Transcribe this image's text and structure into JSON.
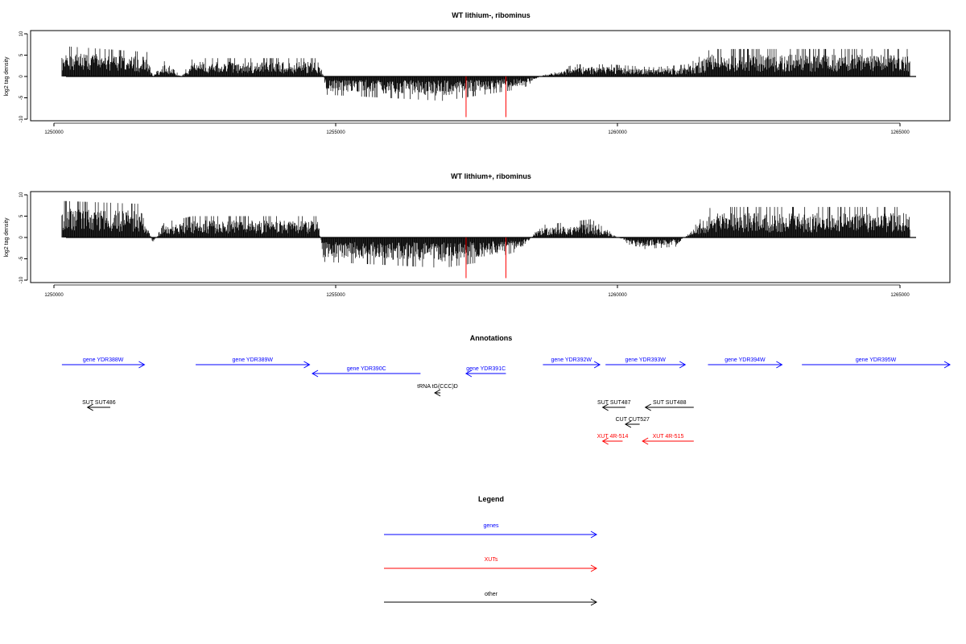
{
  "colors": {
    "genes": "#0000ff",
    "xuts": "#ff0000",
    "other": "#000000",
    "tracks": "#000000",
    "highlight": "#ff0000"
  },
  "chart_data": [
    {
      "type": "bar",
      "title": "WT lithium-, ribominus",
      "ylabel": "log2 tag density",
      "xlim": [
        1249650,
        1265800
      ],
      "ylim": [
        -10.5,
        10.5
      ],
      "x_ticks": [
        "1250000",
        "1255000",
        "1260000",
        "1265000"
      ],
      "y_ticks": [
        "10",
        "5",
        "0",
        "-5",
        "-10"
      ],
      "grid": false,
      "series": [
        {
          "profile": [
            [
              1250200,
              5
            ],
            [
              1251700,
              4
            ],
            [
              1251800,
              0
            ],
            [
              1252000,
              2.5
            ],
            [
              1252300,
              0
            ],
            [
              1252500,
              3
            ],
            [
              1254700,
              3
            ],
            [
              1254800,
              0
            ],
            [
              1254850,
              -3
            ],
            [
              1256900,
              -4
            ],
            [
              1257600,
              -3
            ],
            [
              1258300,
              -2
            ],
            [
              1258600,
              0
            ],
            [
              1259200,
              2
            ],
            [
              1259800,
              2
            ],
            [
              1260600,
              1.5
            ],
            [
              1261200,
              2
            ],
            [
              1261600,
              4.5
            ],
            [
              1265100,
              4.5
            ]
          ]
        }
      ],
      "highlights": [
        {
          "x": 1257300,
          "y": -10
        },
        {
          "x": 1258000,
          "y": -10
        }
      ]
    },
    {
      "type": "bar",
      "title": "WT lithium+, ribominus",
      "ylabel": "log2 tag density",
      "xlim": [
        1249650,
        1265800
      ],
      "ylim": [
        -10.5,
        10.5
      ],
      "x_ticks": [
        "1250000",
        "1255000",
        "1260000",
        "1265000"
      ],
      "y_ticks": [
        "10",
        "5",
        "0",
        "-5",
        "-10"
      ],
      "grid": false,
      "series": [
        {
          "profile": [
            [
              1250200,
              6
            ],
            [
              1251600,
              5.5
            ],
            [
              1251800,
              -1
            ],
            [
              1252000,
              2.5
            ],
            [
              1252500,
              3.5
            ],
            [
              1254700,
              3.5
            ],
            [
              1254800,
              -4
            ],
            [
              1256900,
              -5
            ],
            [
              1257600,
              -4
            ],
            [
              1258300,
              -2
            ],
            [
              1258600,
              2
            ],
            [
              1259500,
              3
            ],
            [
              1260300,
              -2
            ],
            [
              1261000,
              -1.5
            ],
            [
              1261600,
              5
            ],
            [
              1265100,
              5
            ]
          ]
        }
      ],
      "highlights": [
        {
          "x": 1257300,
          "y": -10
        },
        {
          "x": 1258000,
          "y": -10
        }
      ]
    }
  ],
  "annotations": {
    "title": "Annotations",
    "xlim": [
      1249650,
      1265800
    ],
    "features": [
      {
        "label": "gene YDR388W",
        "class": "genes",
        "start": 1250200,
        "end": 1251650,
        "strand": "+",
        "row": 0
      },
      {
        "label": "gene YDR389W",
        "class": "genes",
        "start": 1252550,
        "end": 1254550,
        "strand": "+",
        "row": 0
      },
      {
        "label": "gene YDR390C",
        "class": "genes",
        "start": 1254600,
        "end": 1256500,
        "strand": "-",
        "row": 1
      },
      {
        "label": "gene YDR391C",
        "class": "genes",
        "start": 1257300,
        "end": 1258000,
        "strand": "-",
        "row": 1
      },
      {
        "label": "gene YDR392W",
        "class": "genes",
        "start": 1258650,
        "end": 1259650,
        "strand": "+",
        "row": 0
      },
      {
        "label": "gene YDR393W",
        "class": "genes",
        "start": 1259750,
        "end": 1261150,
        "strand": "+",
        "row": 0
      },
      {
        "label": "gene YDR394W",
        "class": "genes",
        "start": 1261550,
        "end": 1262850,
        "strand": "+",
        "row": 0
      },
      {
        "label": "gene YDR395W",
        "class": "genes",
        "start": 1263200,
        "end": 1265800,
        "strand": "+",
        "row": 0
      },
      {
        "label": "tRNA tG(CCC)D",
        "class": "other",
        "start": 1256750,
        "end": 1256850,
        "strand": "-",
        "row": 2
      },
      {
        "label": "SUT SUT486",
        "class": "other",
        "start": 1250650,
        "end": 1251050,
        "strand": "-",
        "row": 3
      },
      {
        "label": "SUT SUT487",
        "class": "other",
        "start": 1259700,
        "end": 1260100,
        "strand": "-",
        "row": 3
      },
      {
        "label": "SUT SUT488",
        "class": "other",
        "start": 1260450,
        "end": 1261300,
        "strand": "-",
        "row": 3
      },
      {
        "label": "CUT CUT527",
        "class": "other",
        "start": 1260100,
        "end": 1260350,
        "strand": "-",
        "row": 4
      },
      {
        "label": "XUT 4R-514",
        "class": "xuts",
        "start": 1259700,
        "end": 1260050,
        "strand": "-",
        "row": 5
      },
      {
        "label": "XUT 4R-515",
        "class": "xuts",
        "start": 1260400,
        "end": 1261300,
        "strand": "-",
        "row": 5
      }
    ]
  },
  "legend": {
    "title": "Legend",
    "items": [
      {
        "label": "genes",
        "class": "genes"
      },
      {
        "label": "XUTs",
        "class": "xuts"
      },
      {
        "label": "other",
        "class": "other"
      }
    ]
  }
}
